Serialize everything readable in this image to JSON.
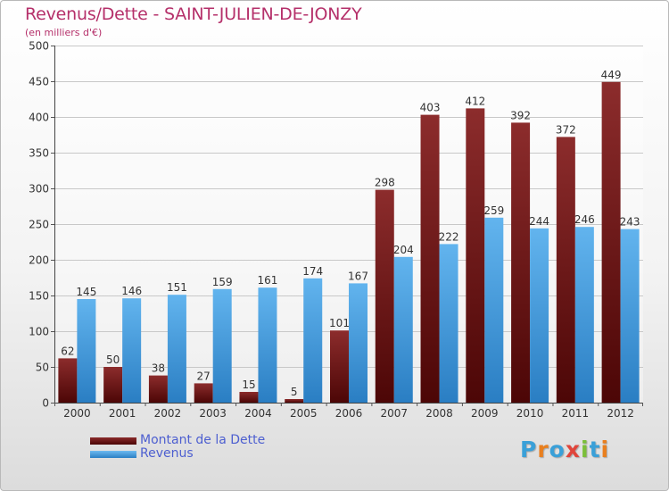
{
  "header": {
    "title": "Revenus/Dette - SAINT-JULIEN-DE-JONZY",
    "subtitle": "(en milliers d'€)"
  },
  "chart_data": {
    "type": "bar",
    "categories": [
      "2000",
      "2001",
      "2002",
      "2003",
      "2004",
      "2005",
      "2006",
      "2007",
      "2008",
      "2009",
      "2010",
      "2011",
      "2012"
    ],
    "series": [
      {
        "name": "Montant de la Dette",
        "values": [
          62,
          50,
          38,
          27,
          15,
          5,
          101,
          298,
          403,
          412,
          392,
          372,
          449
        ],
        "color": "#7a1a1a"
      },
      {
        "name": "Revenus",
        "values": [
          145,
          146,
          151,
          159,
          161,
          174,
          167,
          204,
          222,
          259,
          244,
          246,
          243
        ],
        "color": "#4fa3e6"
      }
    ],
    "title": "Revenus/Dette - SAINT-JULIEN-DE-JONZY",
    "subtitle": "(en milliers d'€)",
    "ylim": [
      0,
      500
    ],
    "yticks": [
      0,
      50,
      100,
      150,
      200,
      250,
      300,
      350,
      400,
      450,
      500
    ],
    "grid": true,
    "legend": "bottom-left"
  },
  "legend": {
    "debt_label": "Montant de la Dette",
    "revenue_label": "Revenus"
  },
  "logo": {
    "letters": [
      "P",
      "r",
      "o",
      "x",
      "i",
      "t",
      "i"
    ],
    "colors": [
      "#3aa0d8",
      "#e97f1e",
      "#3aa0d8",
      "#e0453b",
      "#7bbf3a",
      "#3aa0d8",
      "#e97f1e"
    ]
  }
}
